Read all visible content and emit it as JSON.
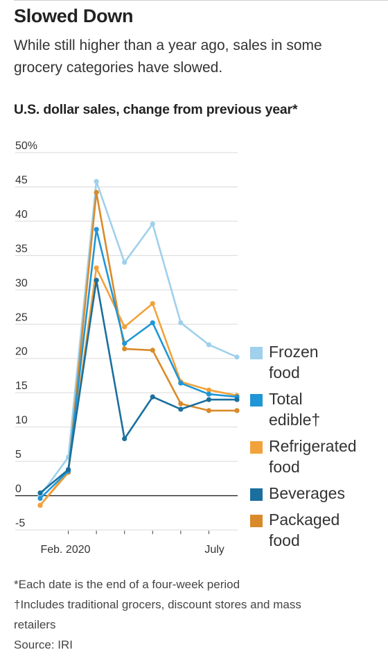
{
  "header": {
    "title": "Slowed Down",
    "subtitle": "While still higher than a year ago, sales in some grocery categories have slowed.",
    "chart_title": "U.S. dollar sales, change from previous year*"
  },
  "footnotes": {
    "note1": "*Each date is the end of a four-week period",
    "note2": "†Includes traditional grocers, discount stores and mass retailers",
    "source": "Source: IRI"
  },
  "colors": {
    "frozen": "#9fd0ec",
    "total_edible": "#1f96d6",
    "refrigerated": "#f2a23a",
    "beverages": "#1a6f9e",
    "packaged": "#d98a2a",
    "grid": "#d9d9d9",
    "zero_line": "#222222"
  },
  "chart_data": {
    "type": "line",
    "x": [
      1,
      2,
      3,
      4,
      5,
      6,
      7,
      8
    ],
    "x_tick_labels": [
      {
        "x": 1.9,
        "label": "Feb. 2020"
      },
      {
        "x": 7.2,
        "label": "July"
      }
    ],
    "x_minor_ticks": [
      2,
      3,
      4,
      5,
      6,
      7
    ],
    "y_ticks": [
      -5,
      0,
      5,
      10,
      15,
      20,
      25,
      30,
      35,
      40,
      45,
      50
    ],
    "y_tick_labels": [
      "-5",
      "0",
      "5",
      "10",
      "15",
      "20",
      "25",
      "30",
      "35",
      "40",
      "45",
      "50%"
    ],
    "ylim": [
      -5,
      50
    ],
    "grid": true,
    "legend_position": "right",
    "series": [
      {
        "name": "Frozen food",
        "legend_lines": [
          "Frozen",
          "food"
        ],
        "color_key": "frozen",
        "values": [
          0.0,
          5.6,
          45.8,
          34.0,
          39.6,
          25.2,
          22.0,
          20.2
        ]
      },
      {
        "name": "Packaged food",
        "legend_lines": [
          "Packaged",
          "food"
        ],
        "color_key": "packaged",
        "values": [
          -1.4,
          3.4,
          44.2,
          21.4,
          21.2,
          13.4,
          12.4,
          12.4
        ]
      },
      {
        "name": "Refrigerated food",
        "legend_lines": [
          "Refrigerated",
          "food"
        ],
        "color_key": "refrigerated",
        "values": [
          -1.4,
          3.6,
          33.2,
          24.6,
          28.0,
          16.6,
          15.4,
          14.6
        ]
      },
      {
        "name": "Total edible†",
        "legend_lines": [
          "Total",
          "edible†"
        ],
        "color_key": "total_edible",
        "values": [
          -0.4,
          3.6,
          38.8,
          22.2,
          25.2,
          16.4,
          14.8,
          14.4
        ]
      },
      {
        "name": "Beverages",
        "legend_lines": [
          "Beverages"
        ],
        "color_key": "beverages",
        "values": [
          0.4,
          3.8,
          31.4,
          8.3,
          14.4,
          12.6,
          14.0,
          14.0
        ]
      }
    ],
    "legend_order": [
      "Frozen food",
      "Total edible†",
      "Refrigerated food",
      "Beverages",
      "Packaged food"
    ]
  }
}
